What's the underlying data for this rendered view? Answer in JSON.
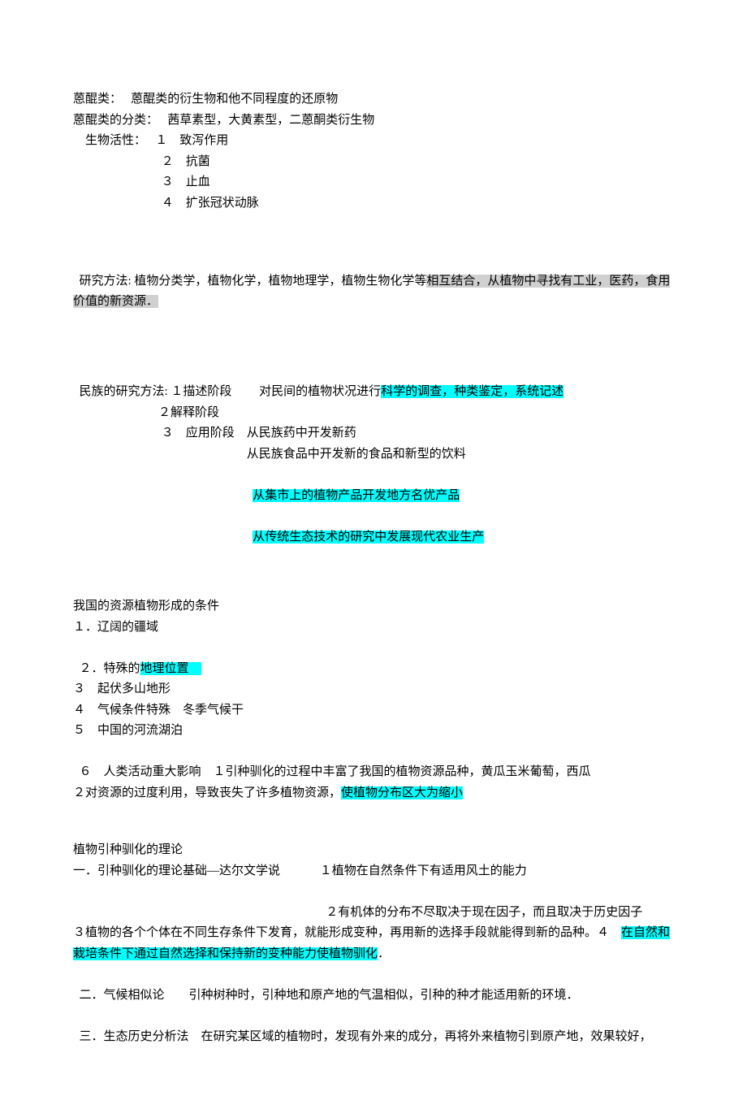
{
  "section1": {
    "l1": "蒽醌类：　 蒽醌类的衍生物和他不同程度的还原物",
    "l2": "蒽醌类的分类：　 茜草素型，大黄素型，二蒽酮类衍生物",
    "l3": "　生物活性：　 １　致泻作用",
    "l4": "　　　　　　　 ２　抗菌",
    "l5": "　　　　　　　 ３　止血",
    "l6": "　　　　　　　 ４　扩张冠状动脉"
  },
  "section2": {
    "l1a": "研究方法: 植物分类学，植物化学，植物地理学，植物生物化学等",
    "l1b": "相互结合，从植物中寻找有工业，医药，食用价值的新资源．"
  },
  "section3": {
    "l1a": "民族的研究方法:",
    "l1b": "１描述阶段　　 对民间的植物状况进行",
    "l1c": "科学的调查，种类鉴定，系统记述",
    "l2": "　　　　　　　２解释阶段",
    "l3": "　　　　　　　 ３　应用阶段　从民族药中开发新药",
    "l4": "　　　　　　　　　　　　　　 从民族食品中开发新的食品和新型的饮料",
    "l5a": "　　　　　　　　　　　　　　 ",
    "l5b": "从集市上的植物产品开发地方名优产品",
    "l6a": "　　　　　　　　　　　　　　 ",
    "l6b": "从传统生态技术的研究中发展现代农业生产"
  },
  "section4": {
    "title": "我国的资源植物形成的条件",
    "l1": "１．辽阔的疆域",
    "l2a": "２．特殊的",
    "l2b": "地理位置　",
    "l3": "３　起伏多山地形",
    "l4": "４　气候条件特殊　冬季气候干",
    "l5": "５　中国的河流湖泊",
    "l6": "６　人类活动重大影响　１引种驯化的过程中丰富了我国的植物资源品种，黄瓜玉米葡萄，西瓜　　　　　　　　　２对资源的过度利用，导致丧失了许多植物资源，",
    "l6b": "使植物分布区大为缩小"
  },
  "section5": {
    "title": "植物引种驯化的理论",
    "l1": "一．引种驯化的理论基础―达尔文学说　　　 １植物在自然条件下有适用风土的能力",
    "l2": "　　　　　　　　　　　　　　　　　　　　 ２有机体的分布不尽取决于现在因子，而且取决于历史因子　　　　　３植物的各个个体在不同生存条件下发育，就能形成变种，再用新的选择手段就能得到新的品种。４　",
    "l2b": "在自然和栽培条件下通过自然选择和保持新的变种能力使植物驯化",
    "l2c": "．",
    "l3": "二．气候相似论　　引种树种时，引种地和原产地的气温相似，引种的种才能适用新的环境．",
    "l4": "三．生态历史分析法　在研究某区域的植物时，发现有外来的成分，再将外来植物引到原产地，效果较好，"
  },
  "colors": {
    "highlight_gray": "#d0d0d0",
    "highlight_cyan": "#00ffff",
    "text": "#000000",
    "background": "#ffffff"
  }
}
